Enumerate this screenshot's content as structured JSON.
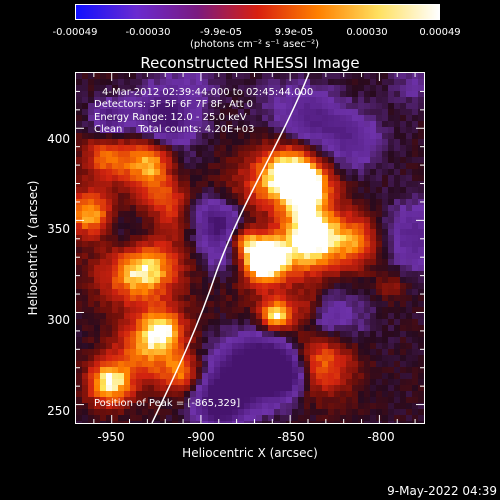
{
  "colorbar": {
    "ticks": [
      "-0.00049",
      "-0.00030",
      "-9.9e-05",
      "9.9e-05",
      "0.00030",
      "0.00049"
    ],
    "units": "(photons cm⁻² s⁻¹ asec⁻²)",
    "colors": [
      "#1010ff",
      "#6a2ad0",
      "#7a1a80",
      "#d82010",
      "#ff8000",
      "#ffe060",
      "#ffffff"
    ]
  },
  "title": "Reconstructed RHESSI Image",
  "info": {
    "time_range": "4-Mar-2012 02:39:44.000 to 02:45:44.000",
    "detectors": "Detectors: 3F 5F 6F 7F 8F, Att 0",
    "energy": "Energy Range: 12.0 - 25.0 keV",
    "clean": "Clean     Total counts: 4.20E+03",
    "peak": "Position of Peak = [-865,329]"
  },
  "axes": {
    "xlabel": "Heliocentric X (arcsec)",
    "ylabel": "Heliocentric Y (arcsec)",
    "xticks": [
      "-950",
      "-900",
      "-850",
      "-800"
    ],
    "yticks": [
      "400",
      "350",
      "300",
      "250"
    ],
    "xlim": [
      -970,
      -775
    ],
    "ylim": [
      240,
      430
    ]
  },
  "peak": {
    "x": -865,
    "y": 329
  },
  "timestamp": "9-May-2022 04:39"
}
